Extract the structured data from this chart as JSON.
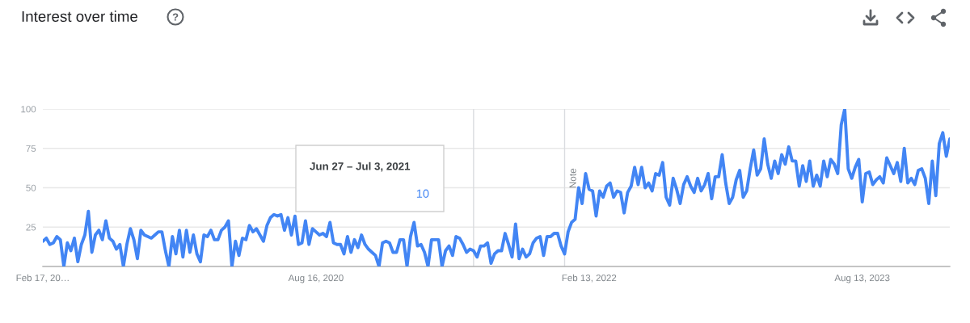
{
  "chart_data": {
    "type": "line",
    "title": "Interest over time",
    "x": [
      "2019-02-17",
      "2019-02-24",
      "2019-03-03",
      "2019-03-10",
      "2019-03-17",
      "2019-03-24",
      "2019-03-31",
      "2019-04-07",
      "2019-04-14",
      "2019-04-21",
      "2019-04-28",
      "2019-05-05",
      "2019-05-12",
      "2019-05-19",
      "2019-05-26",
      "2019-06-02",
      "2019-06-09",
      "2019-06-16",
      "2019-06-23",
      "2019-06-30",
      "2019-07-07",
      "2019-07-14",
      "2019-07-21",
      "2019-07-28",
      "2019-08-04",
      "2019-08-11",
      "2019-08-18",
      "2019-08-25",
      "2019-09-01",
      "2019-09-08",
      "2019-09-15",
      "2019-09-22",
      "2019-09-29",
      "2019-10-06",
      "2019-10-13",
      "2019-10-20",
      "2019-10-27",
      "2019-11-03",
      "2019-11-10",
      "2019-11-17",
      "2019-11-24",
      "2019-12-01",
      "2019-12-08",
      "2019-12-15",
      "2019-12-22",
      "2019-12-29",
      "2020-01-05",
      "2020-01-12",
      "2020-01-19",
      "2020-01-26",
      "2020-02-02",
      "2020-02-09",
      "2020-02-16",
      "2020-02-23",
      "2020-03-01",
      "2020-03-08",
      "2020-03-15",
      "2020-03-22",
      "2020-03-29",
      "2020-04-05",
      "2020-04-12",
      "2020-04-19",
      "2020-04-26",
      "2020-05-03",
      "2020-05-10",
      "2020-05-17",
      "2020-05-24",
      "2020-05-31",
      "2020-06-07",
      "2020-06-14",
      "2020-06-21",
      "2020-06-28",
      "2020-07-05",
      "2020-07-12",
      "2020-07-19",
      "2020-07-26",
      "2020-08-02",
      "2020-08-09",
      "2020-08-16",
      "2020-08-23",
      "2020-08-30",
      "2020-09-06",
      "2020-09-13",
      "2020-09-20",
      "2020-09-27",
      "2020-10-04",
      "2020-10-11",
      "2020-10-18",
      "2020-10-25",
      "2020-11-01",
      "2020-11-08",
      "2020-11-15",
      "2020-11-22",
      "2020-11-29",
      "2020-12-06",
      "2020-12-13",
      "2020-12-20",
      "2020-12-27",
      "2021-01-03",
      "2021-01-10",
      "2021-01-17",
      "2021-01-24",
      "2021-01-31",
      "2021-02-07",
      "2021-02-14",
      "2021-02-21",
      "2021-02-28",
      "2021-03-07",
      "2021-03-14",
      "2021-03-21",
      "2021-03-28",
      "2021-04-04",
      "2021-04-11",
      "2021-04-18",
      "2021-04-25",
      "2021-05-02",
      "2021-05-09",
      "2021-05-16",
      "2021-05-23",
      "2021-05-30",
      "2021-06-06",
      "2021-06-13",
      "2021-06-20",
      "2021-06-27",
      "2021-07-04",
      "2021-07-11",
      "2021-07-18",
      "2021-07-25",
      "2021-08-01",
      "2021-08-08",
      "2021-08-15",
      "2021-08-22",
      "2021-08-29",
      "2021-09-05",
      "2021-09-12",
      "2021-09-19",
      "2021-09-26",
      "2021-10-03",
      "2021-10-10",
      "2021-10-17",
      "2021-10-24",
      "2021-10-31",
      "2021-11-07",
      "2021-11-14",
      "2021-11-21",
      "2021-11-28",
      "2021-12-05",
      "2021-12-12",
      "2021-12-19",
      "2021-12-26",
      "2022-01-02",
      "2022-01-09",
      "2022-01-16",
      "2022-01-23",
      "2022-01-30",
      "2022-02-06",
      "2022-02-13",
      "2022-02-20",
      "2022-02-27",
      "2022-03-06",
      "2022-03-13",
      "2022-03-20",
      "2022-03-27",
      "2022-04-03",
      "2022-04-10",
      "2022-04-17",
      "2022-04-24",
      "2022-05-01",
      "2022-05-08",
      "2022-05-15",
      "2022-05-22",
      "2022-05-29",
      "2022-06-05",
      "2022-06-12",
      "2022-06-19",
      "2022-06-26",
      "2022-07-03",
      "2022-07-10",
      "2022-07-17",
      "2022-07-24",
      "2022-07-31",
      "2022-08-07",
      "2022-08-14",
      "2022-08-21",
      "2022-08-28",
      "2022-09-04",
      "2022-09-11",
      "2022-09-18",
      "2022-09-25",
      "2022-10-02",
      "2022-10-09",
      "2022-10-16",
      "2022-10-23",
      "2022-10-30",
      "2022-11-06",
      "2022-11-13",
      "2022-11-20",
      "2022-11-27",
      "2022-12-04",
      "2022-12-11",
      "2022-12-18",
      "2022-12-25",
      "2023-01-01",
      "2023-01-08",
      "2023-01-15",
      "2023-01-22",
      "2023-01-29",
      "2023-02-05",
      "2023-02-12",
      "2023-02-19",
      "2023-02-26",
      "2023-03-05",
      "2023-03-12",
      "2023-03-19",
      "2023-03-26",
      "2023-04-02",
      "2023-04-09",
      "2023-04-16",
      "2023-04-23",
      "2023-04-30",
      "2023-05-07",
      "2023-05-14",
      "2023-05-21",
      "2023-05-28",
      "2023-06-04",
      "2023-06-11",
      "2023-06-18",
      "2023-06-25",
      "2023-07-02",
      "2023-07-09",
      "2023-07-16",
      "2023-07-23",
      "2023-07-30",
      "2023-08-06",
      "2023-08-13",
      "2023-08-20",
      "2023-08-27",
      "2023-09-03",
      "2023-09-10",
      "2023-09-17",
      "2023-09-24",
      "2023-10-01",
      "2023-10-08",
      "2023-10-15",
      "2023-10-22",
      "2023-10-29",
      "2023-11-05",
      "2023-11-12",
      "2023-11-19",
      "2023-11-26",
      "2023-12-03",
      "2023-12-10",
      "2023-12-17",
      "2023-12-24",
      "2023-12-31",
      "2024-01-07",
      "2024-01-14",
      "2024-01-21",
      "2024-01-28",
      "2024-02-04"
    ],
    "series": [
      {
        "color": "#4285f4",
        "values": [
          16,
          18,
          14,
          15,
          19,
          17,
          0,
          15,
          10,
          18,
          3,
          14,
          20,
          35,
          9,
          20,
          23,
          17,
          29,
          18,
          16,
          11,
          14,
          0,
          14,
          24,
          17,
          5,
          23,
          20,
          19,
          18,
          20,
          22,
          22,
          10,
          0,
          19,
          8,
          23,
          6,
          23,
          9,
          20,
          8,
          3,
          20,
          19,
          23,
          17,
          17,
          23,
          25,
          29,
          0,
          16,
          7,
          18,
          17,
          26,
          22,
          24,
          20,
          16,
          26,
          31,
          33,
          32,
          33,
          23,
          31,
          20,
          32,
          14,
          15,
          29,
          14,
          24,
          22,
          20,
          21,
          19,
          28,
          15,
          14,
          14,
          8,
          19,
          9,
          17,
          12,
          20,
          14,
          11,
          9,
          7,
          0,
          15,
          16,
          15,
          9,
          9,
          17,
          17,
          0,
          19,
          28,
          13,
          14,
          9,
          0,
          17,
          17,
          17,
          0,
          10,
          13,
          7,
          19,
          18,
          14,
          9,
          11,
          10,
          6,
          13,
          13,
          15,
          2,
          8,
          10,
          10,
          21,
          14,
          6,
          27,
          5,
          11,
          6,
          8,
          15,
          18,
          19,
          7,
          19,
          19,
          21,
          21,
          13,
          8,
          22,
          28,
          30,
          50,
          40,
          59,
          49,
          48,
          32,
          48,
          44,
          51,
          53,
          44,
          48,
          47,
          34,
          47,
          51,
          63,
          52,
          63,
          50,
          53,
          48,
          59,
          58,
          66,
          44,
          39,
          56,
          49,
          40,
          52,
          57,
          51,
          47,
          56,
          48,
          52,
          59,
          43,
          57,
          57,
          71,
          53,
          40,
          44,
          55,
          61,
          44,
          48,
          62,
          74,
          58,
          62,
          81,
          65,
          56,
          67,
          59,
          71,
          65,
          76,
          67,
          67,
          51,
          64,
          54,
          67,
          51,
          58,
          51,
          67,
          57,
          68,
          65,
          59,
          90,
          100,
          62,
          56,
          63,
          68,
          41,
          59,
          60,
          52,
          55,
          57,
          53,
          69,
          64,
          59,
          66,
          54,
          75,
          53,
          56,
          52,
          61,
          62,
          56,
          40,
          67,
          45,
          78,
          85,
          70,
          81
        ]
      }
    ],
    "xlim": [
      "2019-02-17",
      "2024-02-04"
    ],
    "xticks": [
      {
        "value": "2019-02-17",
        "label": "Feb 17, 20…"
      },
      {
        "value": "2020-08-16",
        "label": "Aug 16, 2020"
      },
      {
        "value": "2022-02-13",
        "label": "Feb 13, 2022"
      },
      {
        "value": "2023-08-13",
        "label": "Aug 13, 2023"
      }
    ],
    "ylim": [
      0,
      100
    ],
    "yticks": [
      25,
      50,
      75,
      100
    ],
    "grid": "y",
    "ref_lines": [
      {
        "axis": "x",
        "value": "2021-06-27",
        "color": "#dadce0"
      },
      {
        "axis": "x",
        "value": "2021-12-26",
        "label": "Note",
        "color": "#dadce0"
      }
    ],
    "annotations": [
      "Jun 27 – Jul 3, 2021",
      "10"
    ]
  }
}
